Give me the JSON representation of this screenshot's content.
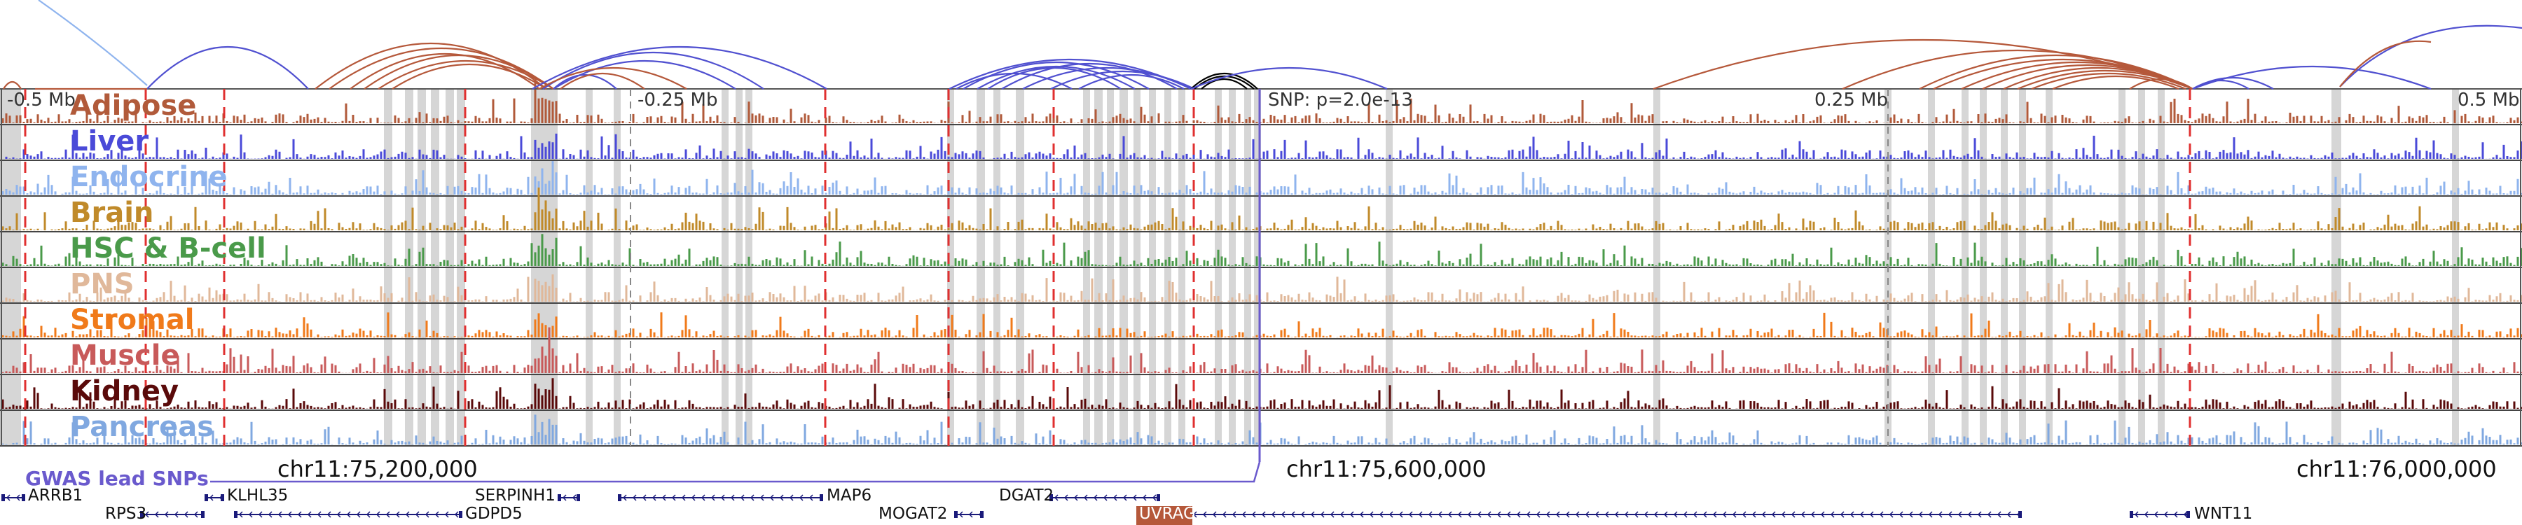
{
  "region": "chr11:75,000,000-76,100,000 genome browser view",
  "ruler": {
    "ticks": [
      "-0.5 Mb",
      "-0.25 Mb",
      "0.25 Mb",
      "0.5 Mb"
    ],
    "snp_label": "SNP: p=2.0e-13"
  },
  "tracks": [
    {
      "name": "Adipose",
      "color": "#b15a3a"
    },
    {
      "name": "Liver",
      "color": "#4a4ad8"
    },
    {
      "name": "Endocrine",
      "color": "#8fb4ee"
    },
    {
      "name": "Brain",
      "color": "#c08a2a"
    },
    {
      "name": "HSC & B-cell",
      "color": "#4a9a4a"
    },
    {
      "name": "PNS",
      "color": "#e0b89a"
    },
    {
      "name": "Stromal",
      "color": "#f07a1a"
    },
    {
      "name": "Muscle",
      "color": "#c85a5a"
    },
    {
      "name": "Kidney",
      "color": "#5a0a0a"
    },
    {
      "name": "Pancreas",
      "color": "#80a8e0"
    }
  ],
  "coordinates": [
    "chr11:75,200,000",
    "chr11:75,600,000",
    "chr11:76,000,000"
  ],
  "gwas": {
    "label": "GWAS lead SNPs"
  },
  "genes": {
    "row1": [
      "ARRB1",
      "KLHL35",
      "SERPINH1",
      "MAP6",
      "DGAT2",
      "WNT11"
    ],
    "row2": [
      "RPS3",
      "GDPD5",
      "MOGAT2",
      "UVRAG"
    ]
  },
  "colors": {
    "arc_red": "#b5583a",
    "arc_blue": "#5050d0",
    "arc_black": "#000000",
    "dashed_red": "#e03030",
    "highlight": "#d6d6d6",
    "gene_blue": "#1a1a7a",
    "uvrag_box": "#b5583a"
  }
}
